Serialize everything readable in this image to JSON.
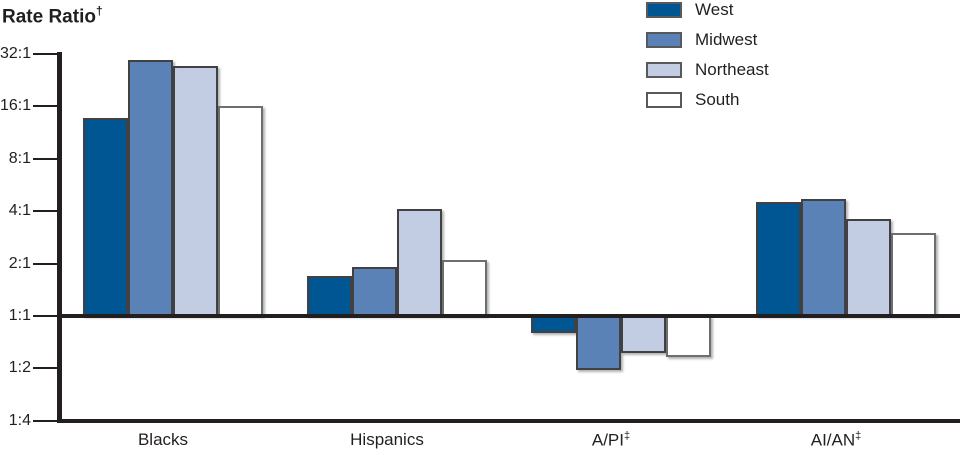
{
  "title": {
    "text": "Rate Ratio",
    "superscript": "†"
  },
  "legend": {
    "position": "top-center",
    "items": [
      {
        "label": "West",
        "color": "#005693",
        "border": "#414042"
      },
      {
        "label": "Midwest",
        "color": "#5B82B6",
        "border": "#414042"
      },
      {
        "label": "Northeast",
        "color": "#C2CCE2",
        "border": "#414042"
      },
      {
        "label": "South",
        "color": "#FFFFFF",
        "border": "#6D6E71"
      }
    ]
  },
  "y_axis": {
    "tick_labels": [
      "32:1",
      "16:1",
      "8:1",
      "4:1",
      "2:1",
      "1:1",
      "1:2",
      "1:4"
    ],
    "scale": "log2",
    "baseline": "1:1"
  },
  "x_axis": {
    "categories": [
      {
        "label": "Blacks",
        "superscript": ""
      },
      {
        "label": "Hispanics",
        "superscript": ""
      },
      {
        "label": "A/PI",
        "superscript": "‡"
      },
      {
        "label": "AI/AN",
        "superscript": "‡"
      }
    ]
  },
  "chart_data": {
    "type": "bar",
    "scale": "log2",
    "title": "Rate Ratio†",
    "categories": [
      "Blacks",
      "Hispanics",
      "A/PI‡",
      "AI/AN‡"
    ],
    "series": [
      {
        "name": "West",
        "color": "#005693",
        "border": "#414042",
        "values": [
          13.7,
          1.7,
          0.8,
          4.5
        ]
      },
      {
        "name": "Midwest",
        "color": "#5B82B6",
        "border": "#414042",
        "values": [
          29.6,
          1.9,
          0.49,
          4.7
        ]
      },
      {
        "name": "Northeast",
        "color": "#C2CCE2",
        "border": "#414042",
        "values": [
          27.3,
          4.1,
          0.61,
          3.6
        ]
      },
      {
        "name": "South",
        "color": "#FFFFFF",
        "border": "#6D6E71",
        "values": [
          16.0,
          2.1,
          0.58,
          3.0
        ]
      }
    ],
    "y_ticks": [
      "32:1",
      "16:1",
      "8:1",
      "4:1",
      "2:1",
      "1:1",
      "1:2",
      "1:4"
    ],
    "y_range_ratio": [
      0.25,
      32
    ],
    "baseline": "1:1",
    "grid": "off",
    "legend_position": "top-center"
  }
}
